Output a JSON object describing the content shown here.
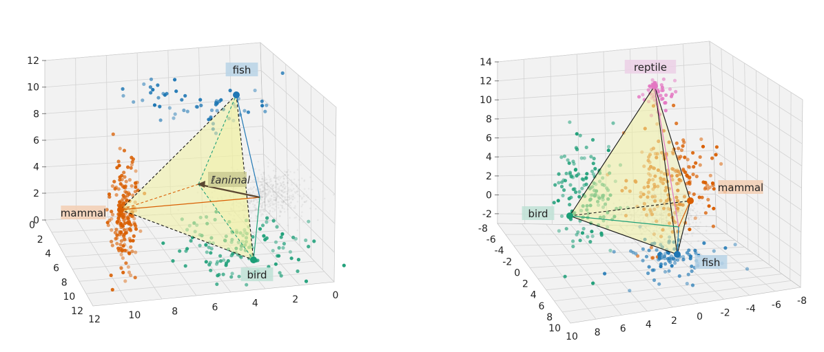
{
  "chart_data": [
    {
      "type": "scatter",
      "panel": "left",
      "projection": "3d",
      "grid": true,
      "x_axis_ticks": [
        "0",
        "2",
        "4",
        "6",
        "8",
        "10",
        "12"
      ],
      "y_axis_ticks": [
        "12",
        "10",
        "8",
        "6",
        "4",
        "2",
        "0"
      ],
      "z_axis_ticks": [
        "0",
        "2",
        "4",
        "6",
        "8",
        "10",
        "12"
      ],
      "zlim": [
        0,
        12
      ],
      "clusters": [
        {
          "name": "fish",
          "color": "#1f77b4",
          "label_bg": "#b9d3e6",
          "center_z": 9.5
        },
        {
          "name": "mammal",
          "color": "#d95f02",
          "label_bg": "#f3cfb4",
          "center_z": 0.8
        },
        {
          "name": "bird",
          "color": "#1b9e77",
          "label_bg": "#bfe2d6",
          "center_z": -0.5
        }
      ],
      "annotation": "ℓ̄animal",
      "polytope_fill": "#f0f0a0"
    },
    {
      "type": "scatter",
      "panel": "right",
      "projection": "3d",
      "grid": true,
      "x_axis_ticks": [
        "-8",
        "-6",
        "-4",
        "-2",
        "0",
        "2",
        "4",
        "6",
        "8",
        "10"
      ],
      "y_axis_ticks": [
        "10",
        "8",
        "6",
        "4",
        "2",
        "0",
        "-2",
        "-4",
        "-6",
        "-8"
      ],
      "z_axis_ticks": [
        "-2",
        "0",
        "2",
        "4",
        "6",
        "8",
        "10",
        "12",
        "14"
      ],
      "zlim": [
        -3,
        15
      ],
      "clusters": [
        {
          "name": "reptile",
          "color": "#e377c2",
          "label_bg": "#ecd0e6",
          "center_z": 13
        },
        {
          "name": "mammal",
          "color": "#d95f02",
          "label_bg": "#f3cfb4",
          "center_z": 0
        },
        {
          "name": "bird",
          "color": "#1b9e77",
          "label_bg": "#bfe2d6",
          "center_z": -1.8
        },
        {
          "name": "fish",
          "color": "#1f77b4",
          "label_bg": "#b9d3e6",
          "center_z": -2.5
        }
      ],
      "polytope_fill": "#f0f0a0"
    }
  ]
}
